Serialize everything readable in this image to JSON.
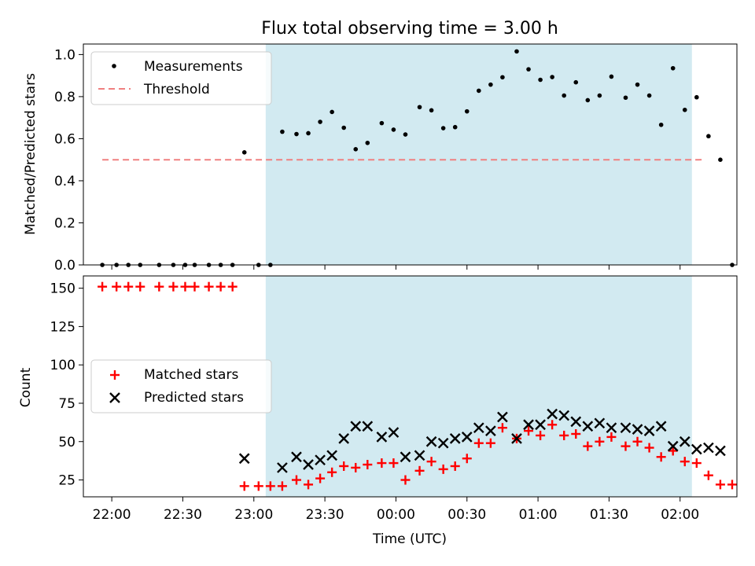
{
  "chart_data": [
    {
      "type": "scatter",
      "title": "Flux total observing time = 3.00 h",
      "xlabel": "",
      "ylabel": "Matched/Predicted stars",
      "ylim": [
        0,
        1.05
      ],
      "xlim": [
        "21:48",
        "02:24"
      ],
      "yticks": [
        "0.0",
        "0.2",
        "0.4",
        "0.6",
        "0.8",
        "1.0"
      ],
      "grid": false,
      "legend_position": "upper-left",
      "shaded_span": {
        "start": "23:05",
        "end": "02:05",
        "color": "#add8e6"
      },
      "threshold": {
        "name": "Threshold",
        "value": 0.5,
        "start": "21:56",
        "end": "02:10",
        "color": "#f08080"
      },
      "series": [
        {
          "name": "Measurements",
          "marker": "dot",
          "color": "#000000",
          "points": [
            [
              "21:56",
              0.0
            ],
            [
              "22:02",
              0.0
            ],
            [
              "22:07",
              0.0
            ],
            [
              "22:12",
              0.0
            ],
            [
              "22:20",
              0.0
            ],
            [
              "22:26",
              0.0
            ],
            [
              "22:31",
              0.0
            ],
            [
              "22:35",
              0.0
            ],
            [
              "22:41",
              0.0
            ],
            [
              "22:46",
              0.0
            ],
            [
              "22:51",
              0.0
            ],
            [
              "22:56",
              0.535
            ],
            [
              "23:02",
              0.0
            ],
            [
              "23:07",
              0.0
            ],
            [
              "23:12",
              0.633
            ],
            [
              "23:18",
              0.622
            ],
            [
              "23:23",
              0.626
            ],
            [
              "23:28",
              0.68
            ],
            [
              "23:33",
              0.727
            ],
            [
              "23:38",
              0.652
            ],
            [
              "23:43",
              0.55
            ],
            [
              "23:48",
              0.58
            ],
            [
              "23:54",
              0.674
            ],
            [
              "23:59",
              0.643
            ],
            [
              "00:04",
              0.62
            ],
            [
              "00:10",
              0.75
            ],
            [
              "00:15",
              0.735
            ],
            [
              "00:20",
              0.65
            ],
            [
              "00:25",
              0.655
            ],
            [
              "00:30",
              0.73
            ],
            [
              "00:35",
              0.828
            ],
            [
              "00:40",
              0.857
            ],
            [
              "00:45",
              0.892
            ],
            [
              "00:51",
              1.015
            ],
            [
              "00:56",
              0.93
            ],
            [
              "01:01",
              0.88
            ],
            [
              "01:06",
              0.893
            ],
            [
              "01:11",
              0.805
            ],
            [
              "01:16",
              0.868
            ],
            [
              "01:21",
              0.783
            ],
            [
              "01:26",
              0.805
            ],
            [
              "01:31",
              0.895
            ],
            [
              "01:37",
              0.795
            ],
            [
              "01:42",
              0.857
            ],
            [
              "01:47",
              0.805
            ],
            [
              "01:52",
              0.666
            ],
            [
              "01:57",
              0.935
            ],
            [
              "02:02",
              0.737
            ],
            [
              "02:07",
              0.797
            ],
            [
              "02:12",
              0.612
            ],
            [
              "02:17",
              0.5
            ],
            [
              "02:22",
              0.0
            ]
          ]
        }
      ]
    },
    {
      "type": "scatter",
      "title": "",
      "xlabel": "Time (UTC)",
      "ylabel": "Count",
      "ylim": [
        14,
        158
      ],
      "xlim": [
        "21:48",
        "02:24"
      ],
      "yticks": [
        "25",
        "50",
        "75",
        "100",
        "125",
        "150"
      ],
      "xticks": [
        "22:00",
        "22:30",
        "23:00",
        "23:30",
        "00:00",
        "00:30",
        "01:00",
        "01:30",
        "02:00"
      ],
      "grid": false,
      "legend_position": "center-left",
      "shaded_span": {
        "start": "23:05",
        "end": "02:05",
        "color": "#add8e6"
      },
      "series": [
        {
          "name": "Matched stars",
          "marker": "plus",
          "color": "#ff0000",
          "points": [
            [
              "21:56",
              151
            ],
            [
              "22:02",
              151
            ],
            [
              "22:07",
              151
            ],
            [
              "22:12",
              151
            ],
            [
              "22:20",
              151
            ],
            [
              "22:26",
              151
            ],
            [
              "22:31",
              151
            ],
            [
              "22:35",
              151
            ],
            [
              "22:41",
              151
            ],
            [
              "22:46",
              151
            ],
            [
              "22:51",
              151
            ],
            [
              "22:56",
              21
            ],
            [
              "23:02",
              21
            ],
            [
              "23:07",
              21
            ],
            [
              "23:12",
              21
            ],
            [
              "23:18",
              25
            ],
            [
              "23:23",
              22
            ],
            [
              "23:28",
              26
            ],
            [
              "23:33",
              30
            ],
            [
              "23:38",
              34
            ],
            [
              "23:43",
              33
            ],
            [
              "23:48",
              35
            ],
            [
              "23:54",
              36
            ],
            [
              "23:59",
              36
            ],
            [
              "00:04",
              25
            ],
            [
              "00:10",
              31
            ],
            [
              "00:15",
              37
            ],
            [
              "00:20",
              32
            ],
            [
              "00:25",
              34
            ],
            [
              "00:30",
              39
            ],
            [
              "00:35",
              49
            ],
            [
              "00:40",
              49
            ],
            [
              "00:45",
              59
            ],
            [
              "00:51",
              52
            ],
            [
              "00:56",
              57
            ],
            [
              "01:01",
              54
            ],
            [
              "01:06",
              61
            ],
            [
              "01:11",
              54
            ],
            [
              "01:16",
              55
            ],
            [
              "01:21",
              47
            ],
            [
              "01:26",
              50
            ],
            [
              "01:31",
              53
            ],
            [
              "01:37",
              47
            ],
            [
              "01:42",
              50
            ],
            [
              "01:47",
              46
            ],
            [
              "01:52",
              40
            ],
            [
              "01:57",
              44
            ],
            [
              "02:02",
              37
            ],
            [
              "02:07",
              36
            ],
            [
              "02:12",
              28
            ],
            [
              "02:17",
              22
            ],
            [
              "02:22",
              22
            ]
          ]
        },
        {
          "name": "Predicted stars",
          "marker": "x",
          "color": "#000000",
          "points": [
            [
              "22:56",
              39
            ],
            [
              "23:12",
              33
            ],
            [
              "23:18",
              40
            ],
            [
              "23:23",
              35
            ],
            [
              "23:28",
              38
            ],
            [
              "23:33",
              41
            ],
            [
              "23:38",
              52
            ],
            [
              "23:43",
              60
            ],
            [
              "23:48",
              60
            ],
            [
              "23:54",
              53
            ],
            [
              "23:59",
              56
            ],
            [
              "00:04",
              40
            ],
            [
              "00:10",
              41
            ],
            [
              "00:15",
              50
            ],
            [
              "00:20",
              49
            ],
            [
              "00:25",
              52
            ],
            [
              "00:30",
              53
            ],
            [
              "00:35",
              59
            ],
            [
              "00:40",
              57
            ],
            [
              "00:45",
              66
            ],
            [
              "00:51",
              52
            ],
            [
              "00:56",
              61
            ],
            [
              "01:01",
              61
            ],
            [
              "01:06",
              68
            ],
            [
              "01:11",
              67
            ],
            [
              "01:16",
              63
            ],
            [
              "01:21",
              60
            ],
            [
              "01:26",
              62
            ],
            [
              "01:31",
              59
            ],
            [
              "01:37",
              59
            ],
            [
              "01:42",
              58
            ],
            [
              "01:47",
              57
            ],
            [
              "01:52",
              60
            ],
            [
              "01:57",
              47
            ],
            [
              "02:02",
              50
            ],
            [
              "02:07",
              45
            ],
            [
              "02:12",
              46
            ],
            [
              "02:17",
              44
            ]
          ]
        }
      ]
    }
  ]
}
